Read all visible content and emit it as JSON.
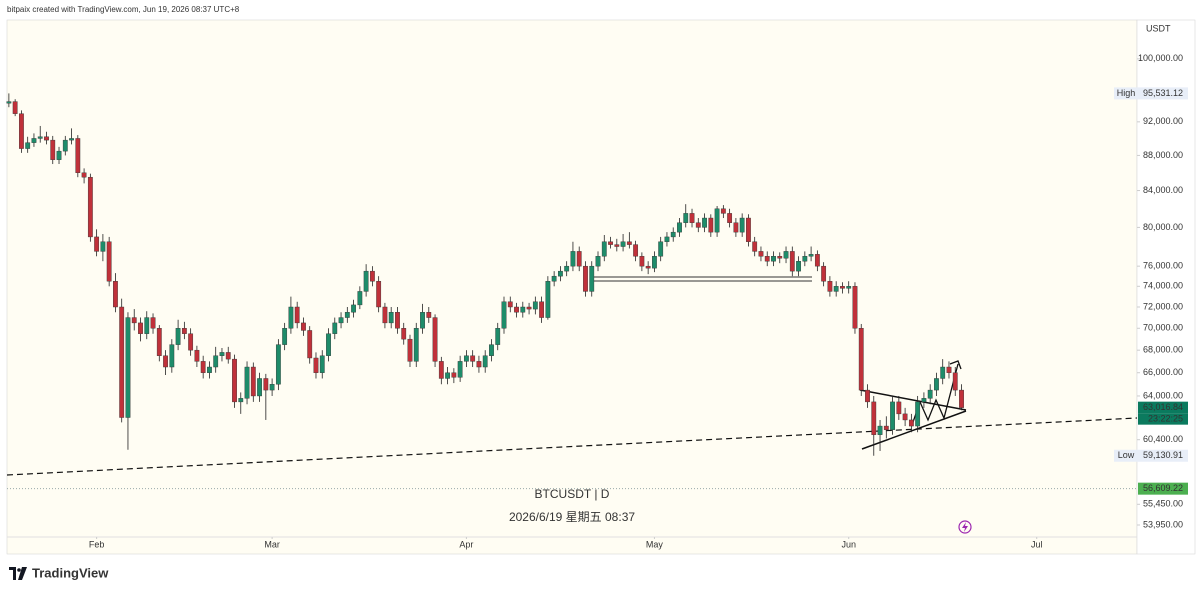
{
  "header": "bitpaix created with TradingView.com, Jun 19, 2026 08:37 UTC+8",
  "footer": "TradingView",
  "chart_data": {
    "type": "candlestick",
    "symbol_title": "BTCUSDT | D",
    "timestamp": "2026/6/19 星期五 08:37",
    "currency": "USDT",
    "up_color": "#1e8c6a",
    "down_color": "#c0313a",
    "wick_color": "#222222",
    "log_scale": true,
    "grid": false,
    "xlim": [
      -0.3,
      180
    ],
    "xticks": [
      {
        "value": 14,
        "label": "Feb"
      },
      {
        "value": 42,
        "label": "Mar"
      },
      {
        "value": 73,
        "label": "Apr"
      },
      {
        "value": 103,
        "label": "May"
      },
      {
        "value": 134,
        "label": "Jun"
      },
      {
        "value": 164,
        "label": "Jul"
      }
    ],
    "ylim": [
      53100,
      105000
    ],
    "yticks": [
      {
        "value": 100000,
        "label": "100,000.00"
      },
      {
        "value": 92000,
        "label": "92,000.00"
      },
      {
        "value": 88000,
        "label": "88,000.00"
      },
      {
        "value": 84000,
        "label": "84,000.00"
      },
      {
        "value": 80000,
        "label": "80,000.00"
      },
      {
        "value": 76000,
        "label": "76,000.00"
      },
      {
        "value": 74000,
        "label": "74,000.00"
      },
      {
        "value": 72000,
        "label": "72,000.00"
      },
      {
        "value": 70000,
        "label": "70,000.00"
      },
      {
        "value": 68000,
        "label": "68,000.00"
      },
      {
        "value": 66000,
        "label": "66,000.00"
      },
      {
        "value": 64000,
        "label": "64,000.00"
      },
      {
        "value": 60400,
        "label": "60,400.00"
      },
      {
        "value": 55450,
        "label": "55,450.00"
      },
      {
        "value": 53950,
        "label": "53,950.00"
      }
    ],
    "high_tag": "High",
    "high_label": "95,531.12",
    "low_tag": "Low",
    "low_label": "59,130.91",
    "last_label": "63,016.84",
    "countdown": "23:22:25",
    "alert_line": {
      "value": 56609.22,
      "label": "56,609.22"
    },
    "ohlc": [
      [
        94300,
        95531.12,
        93800,
        94500
      ],
      [
        94500,
        94800,
        92700,
        93000
      ],
      [
        93000,
        93400,
        88300,
        88800
      ],
      [
        88800,
        90200,
        88300,
        89500
      ],
      [
        89500,
        90600,
        89000,
        90000
      ],
      [
        90000,
        91500,
        89500,
        90200
      ],
      [
        90200,
        90800,
        89300,
        89800
      ],
      [
        89800,
        90300,
        87000,
        87500
      ],
      [
        87500,
        89000,
        87000,
        88500
      ],
      [
        88500,
        90300,
        88000,
        89800
      ],
      [
        89800,
        91200,
        89300,
        90000
      ],
      [
        90000,
        90400,
        85500,
        86000
      ],
      [
        86000,
        86500,
        84800,
        85500
      ],
      [
        85500,
        85900,
        78500,
        79000
      ],
      [
        79000,
        79800,
        77000,
        77500
      ],
      [
        77500,
        79300,
        76500,
        78500
      ],
      [
        78500,
        79000,
        74000,
        74500
      ],
      [
        74500,
        75300,
        71500,
        72000
      ],
      [
        72000,
        72800,
        61800,
        62200
      ],
      [
        62200,
        71500,
        59600,
        71000
      ],
      [
        71000,
        71800,
        69800,
        70500
      ],
      [
        70500,
        71000,
        68800,
        69500
      ],
      [
        69500,
        71600,
        69000,
        71000
      ],
      [
        71000,
        71400,
        69500,
        70000
      ],
      [
        70000,
        70300,
        67000,
        67500
      ],
      [
        67500,
        68000,
        65800,
        66500
      ],
      [
        66500,
        69000,
        66000,
        68500
      ],
      [
        68500,
        70800,
        68000,
        70000
      ],
      [
        70000,
        70600,
        69000,
        69500
      ],
      [
        69500,
        70000,
        67500,
        68000
      ],
      [
        68000,
        68400,
        66500,
        67000
      ],
      [
        67000,
        67500,
        65500,
        66000
      ],
      [
        66000,
        67000,
        65500,
        66500
      ],
      [
        66500,
        68300,
        66000,
        67500
      ],
      [
        67500,
        68200,
        67000,
        67800
      ],
      [
        67800,
        68300,
        66800,
        67200
      ],
      [
        67200,
        67600,
        63000,
        63500
      ],
      [
        63500,
        64300,
        62500,
        63800
      ],
      [
        63800,
        67000,
        63300,
        66500
      ],
      [
        66500,
        66900,
        63500,
        64000
      ],
      [
        64000,
        66000,
        63500,
        65500
      ],
      [
        65500,
        65900,
        62000,
        64500
      ],
      [
        64500,
        65500,
        64000,
        65000
      ],
      [
        65000,
        69000,
        64500,
        68500
      ],
      [
        68500,
        70500,
        68000,
        70000
      ],
      [
        70000,
        73000,
        69500,
        72000
      ],
      [
        72000,
        72500,
        70000,
        70500
      ],
      [
        70500,
        71000,
        69300,
        69800
      ],
      [
        69800,
        70200,
        66800,
        67300
      ],
      [
        67300,
        67800,
        65500,
        66000
      ],
      [
        66000,
        68000,
        65500,
        67500
      ],
      [
        67500,
        70000,
        67000,
        69500
      ],
      [
        69500,
        71000,
        69000,
        70500
      ],
      [
        70500,
        71500,
        70000,
        71000
      ],
      [
        71000,
        72000,
        70500,
        71500
      ],
      [
        71500,
        72700,
        71000,
        72200
      ],
      [
        72200,
        74000,
        71800,
        73500
      ],
      [
        73500,
        76200,
        73000,
        75500
      ],
      [
        75500,
        76000,
        74000,
        74500
      ],
      [
        74500,
        75000,
        71500,
        72000
      ],
      [
        72000,
        72400,
        70000,
        70500
      ],
      [
        70500,
        72000,
        70000,
        71500
      ],
      [
        71500,
        72000,
        69500,
        70000
      ],
      [
        70000,
        70500,
        68500,
        69000
      ],
      [
        69000,
        69400,
        66500,
        67000
      ],
      [
        67000,
        70500,
        66500,
        70000
      ],
      [
        70000,
        72300,
        69500,
        71500
      ],
      [
        71500,
        72000,
        70500,
        71000
      ],
      [
        71000,
        71300,
        66500,
        67000
      ],
      [
        67000,
        67400,
        65000,
        65500
      ],
      [
        65500,
        66500,
        65000,
        66000
      ],
      [
        66000,
        66400,
        65100,
        65600
      ],
      [
        65600,
        67500,
        65200,
        67000
      ],
      [
        67000,
        68000,
        66500,
        67500
      ],
      [
        67500,
        68000,
        66500,
        67000
      ],
      [
        67000,
        67500,
        66000,
        66500
      ],
      [
        66500,
        68000,
        66000,
        67500
      ],
      [
        67500,
        69000,
        67000,
        68500
      ],
      [
        68500,
        70500,
        68000,
        70000
      ],
      [
        70000,
        73000,
        69500,
        72500
      ],
      [
        72500,
        73000,
        71500,
        72000
      ],
      [
        72000,
        72400,
        71000,
        71500
      ],
      [
        71500,
        72500,
        71000,
        72000
      ],
      [
        72000,
        72400,
        71300,
        71800
      ],
      [
        71800,
        73000,
        71300,
        72500
      ],
      [
        72500,
        73000,
        70500,
        71000
      ],
      [
        71000,
        75000,
        70800,
        74500
      ],
      [
        74500,
        75500,
        74000,
        75000
      ],
      [
        75000,
        76000,
        74500,
        75500
      ],
      [
        75500,
        76500,
        75000,
        76000
      ],
      [
        76000,
        78500,
        75500,
        77500
      ],
      [
        77500,
        78000,
        75500,
        76000
      ],
      [
        76000,
        76500,
        73000,
        73500
      ],
      [
        73500,
        76500,
        73000,
        76000
      ],
      [
        76000,
        77500,
        75500,
        77000
      ],
      [
        77000,
        79200,
        76500,
        78500
      ],
      [
        78500,
        79000,
        77800,
        78200
      ],
      [
        78200,
        78800,
        77500,
        78000
      ],
      [
        78000,
        79300,
        77500,
        78500
      ],
      [
        78500,
        79500,
        77800,
        78200
      ],
      [
        78200,
        78600,
        76500,
        77000
      ],
      [
        77000,
        77400,
        75500,
        76000
      ],
      [
        76000,
        76500,
        75200,
        75800
      ],
      [
        75800,
        77500,
        75400,
        77000
      ],
      [
        77000,
        79000,
        76500,
        78500
      ],
      [
        78500,
        79500,
        78000,
        79000
      ],
      [
        79000,
        80000,
        78500,
        79500
      ],
      [
        79500,
        81000,
        79000,
        80500
      ],
      [
        80500,
        82500,
        80000,
        81500
      ],
      [
        81500,
        82000,
        80000,
        80500
      ],
      [
        80500,
        81000,
        79500,
        80000
      ],
      [
        80000,
        81500,
        79500,
        81000
      ],
      [
        81000,
        81400,
        79000,
        79500
      ],
      [
        79500,
        82300,
        79000,
        82000
      ],
      [
        82000,
        82400,
        81000,
        81500
      ],
      [
        81500,
        82000,
        80000,
        80500
      ],
      [
        80500,
        81000,
        79000,
        79500
      ],
      [
        79500,
        81500,
        79000,
        81000
      ],
      [
        81000,
        81400,
        78000,
        78500
      ],
      [
        78500,
        79000,
        77000,
        77500
      ],
      [
        77500,
        78000,
        76500,
        77000
      ],
      [
        77000,
        77500,
        76000,
        76500
      ],
      [
        76500,
        77500,
        76000,
        77000
      ],
      [
        77000,
        77400,
        76300,
        76800
      ],
      [
        76800,
        78000,
        76300,
        77500
      ],
      [
        77500,
        78000,
        75000,
        75500
      ],
      [
        75500,
        77000,
        75000,
        76500
      ],
      [
        76500,
        77500,
        76000,
        77000
      ],
      [
        77000,
        78000,
        76500,
        77200
      ],
      [
        77200,
        77600,
        75500,
        76000
      ],
      [
        76000,
        76400,
        74000,
        74500
      ],
      [
        74500,
        75000,
        73000,
        73500
      ],
      [
        73500,
        74500,
        73000,
        74000
      ],
      [
        74000,
        74400,
        73300,
        73800
      ],
      [
        73800,
        74500,
        73300,
        74000
      ],
      [
        74000,
        74400,
        69500,
        70000
      ],
      [
        70000,
        70400,
        64000,
        64500
      ],
      [
        64500,
        65000,
        63000,
        63500
      ],
      [
        63500,
        64000,
        59130.91,
        60800
      ],
      [
        60800,
        62000,
        59500,
        61500
      ],
      [
        61500,
        62300,
        60500,
        61200
      ],
      [
        61200,
        64000,
        60800,
        63500
      ],
      [
        63500,
        64000,
        62000,
        62500
      ],
      [
        62500,
        63000,
        61500,
        62000
      ],
      [
        62000,
        62500,
        61000,
        61500
      ],
      [
        61500,
        64000,
        61000,
        63500
      ],
      [
        63500,
        64300,
        63000,
        63800
      ],
      [
        63800,
        65000,
        63300,
        64500
      ],
      [
        64500,
        66000,
        64000,
        65500
      ],
      [
        65500,
        67200,
        65000,
        66500
      ],
      [
        66500,
        67000,
        65500,
        66000
      ],
      [
        66000,
        66500,
        64000,
        64500
      ],
      [
        64500,
        65000,
        62800,
        63016.84
      ]
    ]
  }
}
